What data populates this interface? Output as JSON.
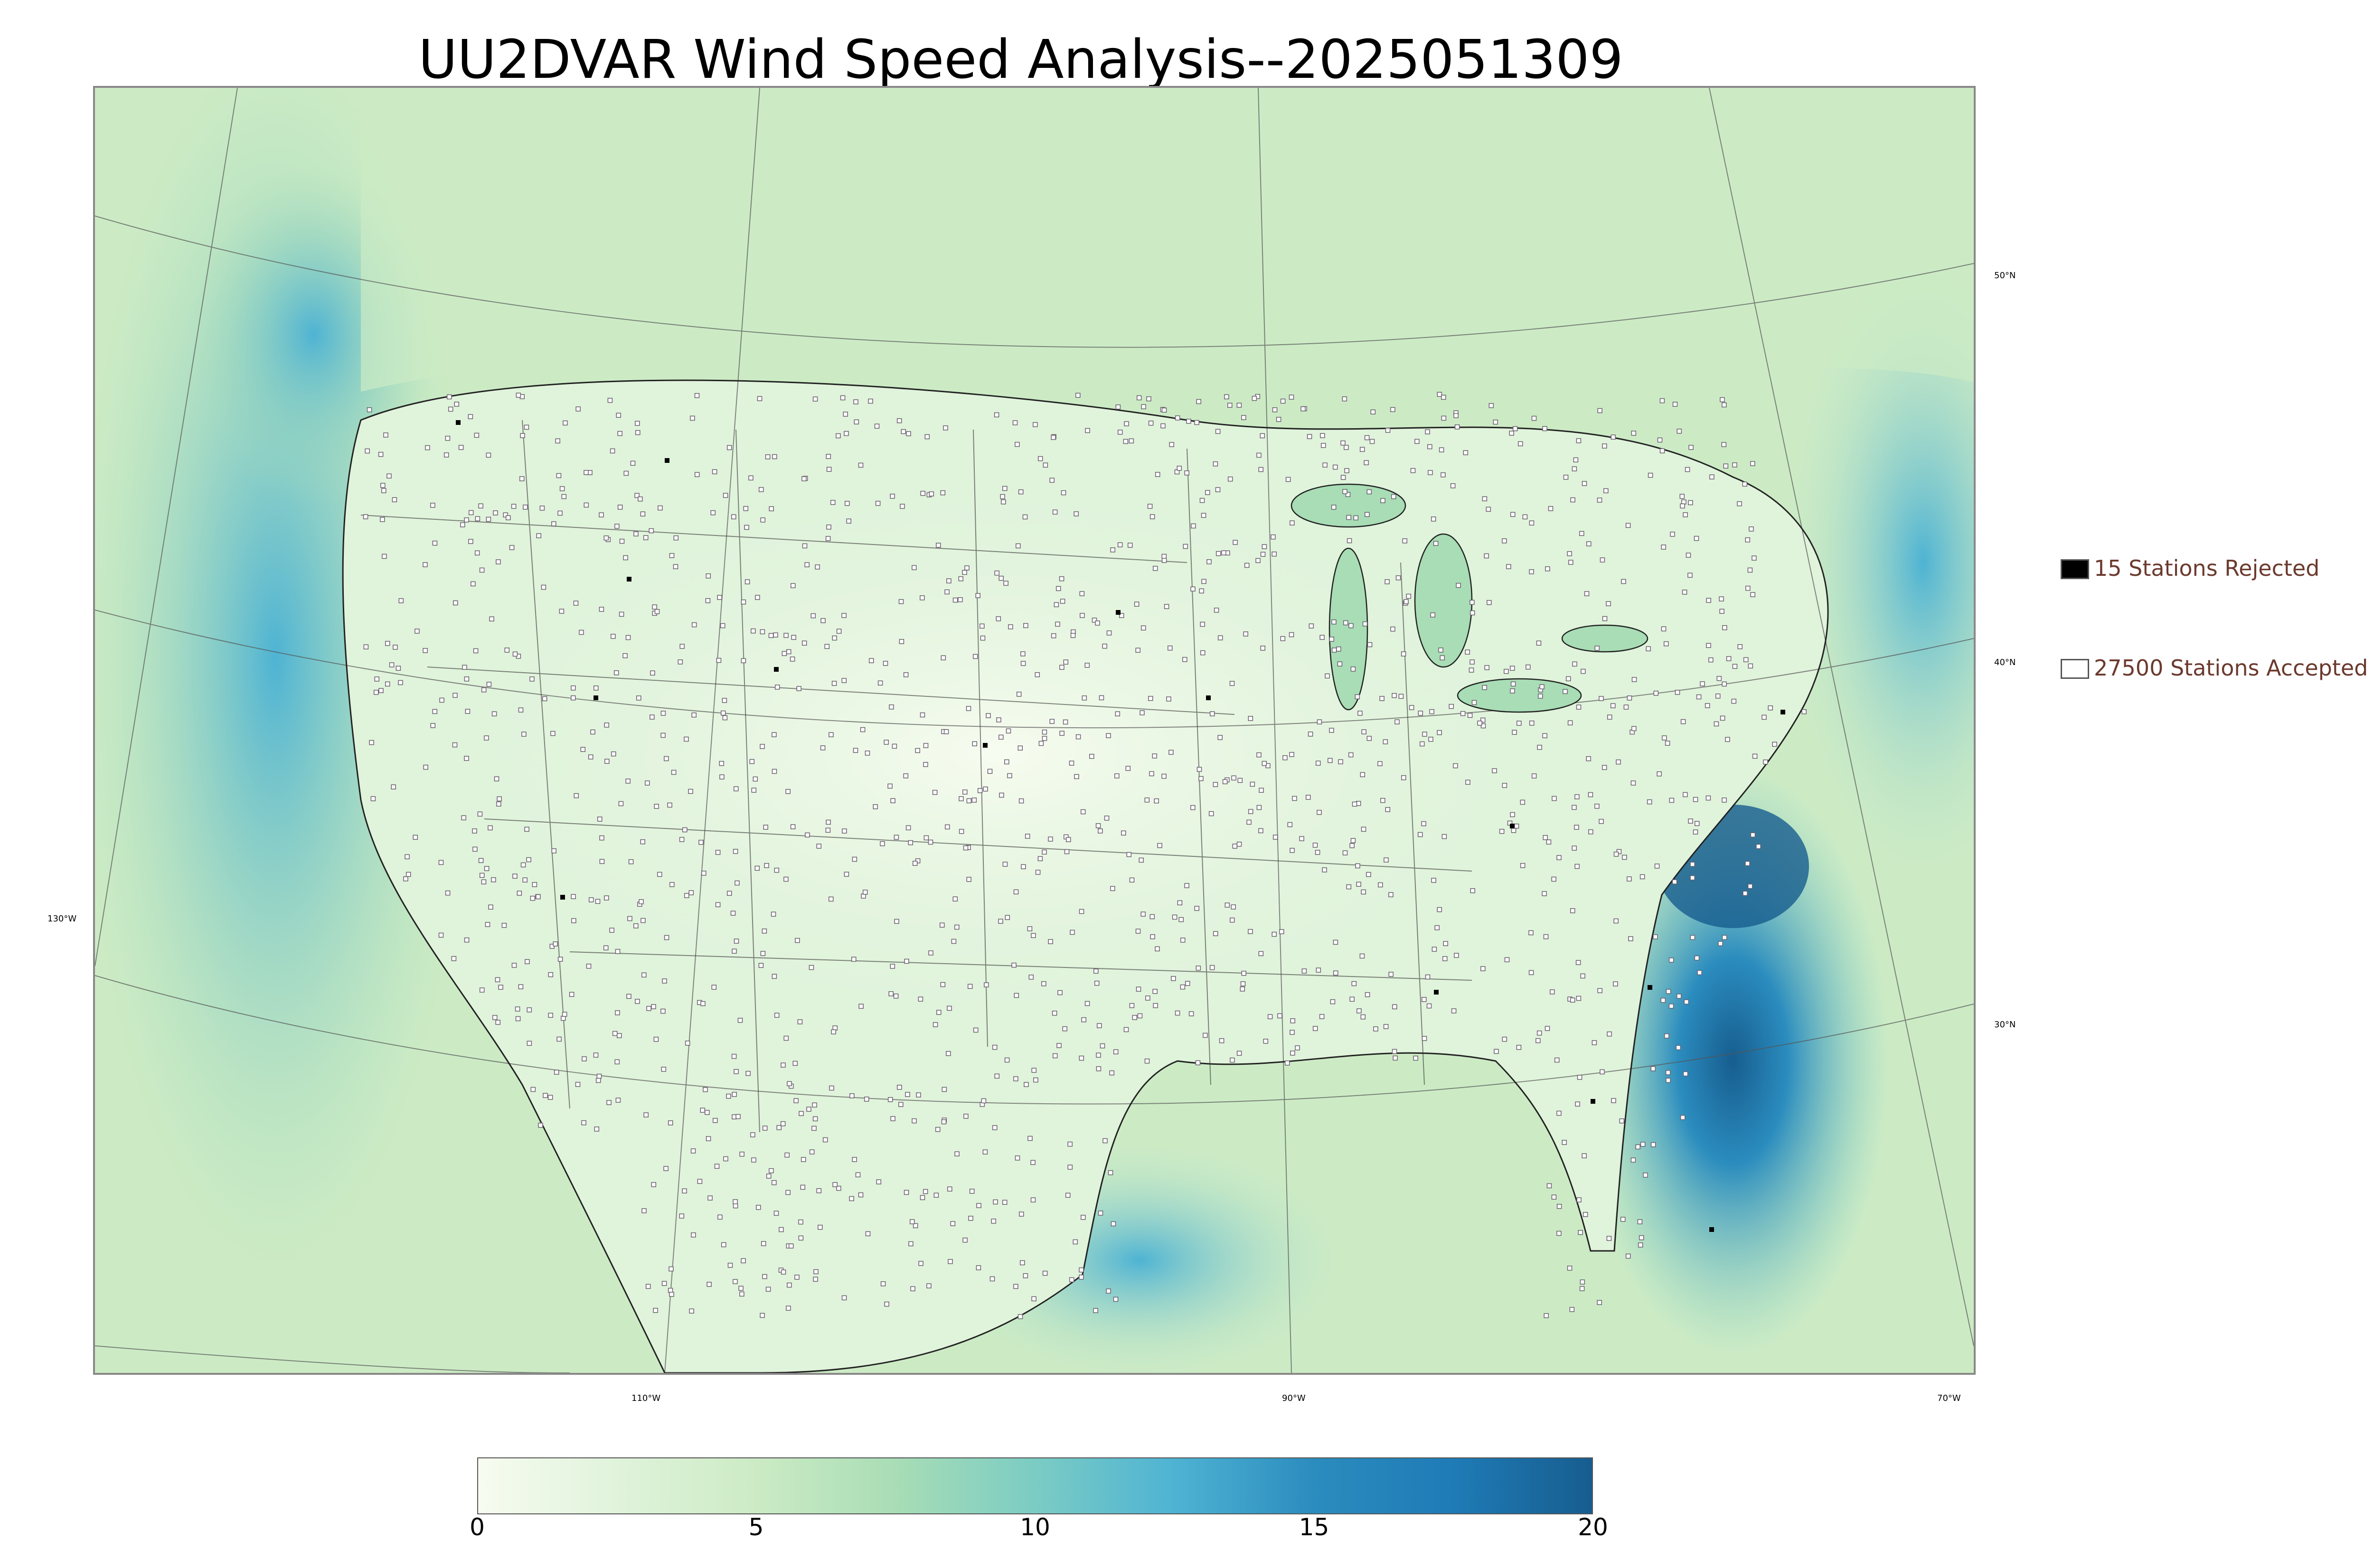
{
  "title": "UU2DVAR Wind Speed Analysis--2025051309",
  "map": {
    "projection": "lambert-conformal",
    "layers": [
      "coastlines",
      "country-borders",
      "state-borders",
      "county-borders",
      "graticule",
      "station-markers"
    ],
    "colormap": "GnBu"
  },
  "longitude_labels": [
    "130°W",
    "110°W",
    "90°W",
    "70°W"
  ],
  "latitude_labels": [
    "50°N",
    "40°N",
    "30°N"
  ],
  "legend": {
    "rejected": {
      "label": "15 Stations Rejected",
      "color": "#000000"
    },
    "accepted": {
      "label": "27500 Stations Accepted",
      "color": "#ffffff"
    }
  },
  "colorbar": {
    "min": 0,
    "max": 20,
    "ticks": [
      "0",
      "5",
      "10",
      "15",
      "20"
    ],
    "colors": [
      "#f7fcf0",
      "#e0f3db",
      "#ccebc5",
      "#a8ddb5",
      "#7bccc4",
      "#4eb3d3",
      "#2b8cbe",
      "#1f7bb6",
      "#175d8f"
    ]
  }
}
